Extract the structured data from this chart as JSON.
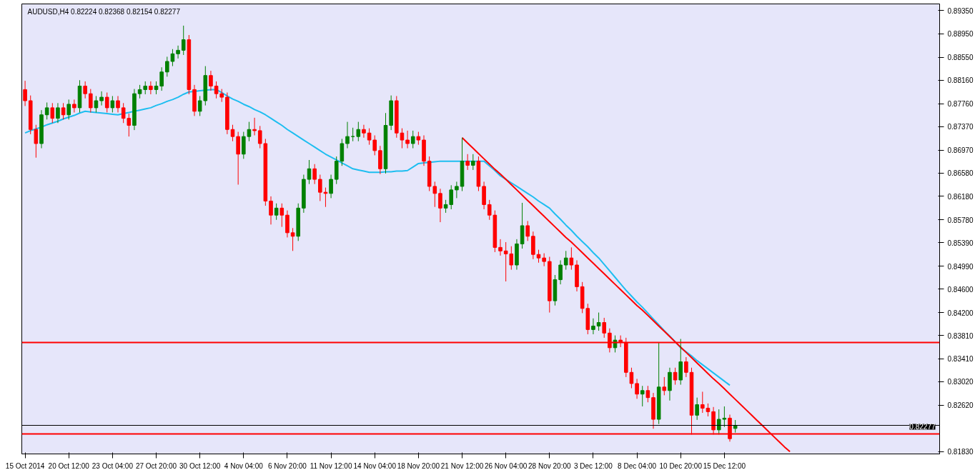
{
  "chart_data": {
    "type": "candlestick",
    "title": "AUDUSD,H4  0.82224 0.82368 0.82154 0.82277",
    "categories": [
      "15 Oct 2014",
      null,
      null,
      null,
      null,
      null,
      null,
      null,
      "20 Oct 12:00",
      null,
      null,
      null,
      null,
      null,
      null,
      null,
      "23 Oct 04:00",
      null,
      null,
      null,
      null,
      null,
      null,
      null,
      "27 Oct 20:00",
      null,
      null,
      null,
      null,
      null,
      null,
      null,
      "30 Oct 12:00",
      null,
      null,
      null,
      null,
      null,
      null,
      null,
      "4 Nov 04:00",
      null,
      null,
      null,
      null,
      null,
      null,
      null,
      "6 Nov 20:00",
      null,
      null,
      null,
      null,
      null,
      null,
      null,
      "11 Nov 12:00",
      null,
      null,
      null,
      null,
      null,
      null,
      null,
      "14 Nov 04:00",
      null,
      null,
      null,
      null,
      null,
      null,
      null,
      "18 Nov 20:00",
      null,
      null,
      null,
      null,
      null,
      null,
      null,
      "21 Nov 12:00",
      null,
      null,
      null,
      null,
      null,
      null,
      null,
      "26 Nov 04:00",
      null,
      null,
      null,
      null,
      null,
      null,
      null,
      "28 Nov 20:00",
      null,
      null,
      null,
      null,
      null,
      null,
      null,
      "3 Dec 12:00",
      null,
      null,
      null,
      null,
      null,
      null,
      null,
      "8 Dec 04:00",
      null,
      null,
      null,
      null,
      null,
      null,
      null,
      "10 Dec 20:00",
      null,
      null,
      null,
      null,
      null,
      null,
      null,
      "15 Dec 12:00",
      null,
      null,
      null,
      null,
      null,
      null,
      null,
      null,
      null,
      null,
      null,
      null,
      null,
      null,
      null,
      null,
      null,
      null,
      null,
      null,
      null,
      null,
      null,
      null,
      null,
      null,
      null,
      null,
      null,
      null,
      null,
      null,
      null,
      null,
      null,
      null,
      null,
      null,
      null
    ],
    "ohlc": [
      [
        0.88,
        0.8815,
        0.8772,
        0.8781
      ],
      [
        0.8781,
        0.879,
        0.8724,
        0.8732
      ],
      [
        0.8732,
        0.874,
        0.8684,
        0.8708
      ],
      [
        0.8708,
        0.8765,
        0.87,
        0.8757
      ],
      [
        0.8757,
        0.8778,
        0.8749,
        0.8769
      ],
      [
        0.8769,
        0.8777,
        0.8743,
        0.8751
      ],
      [
        0.8751,
        0.8777,
        0.8743,
        0.8769
      ],
      [
        0.8769,
        0.8777,
        0.8749,
        0.8757
      ],
      [
        0.8757,
        0.8783,
        0.8749,
        0.8775
      ],
      [
        0.8775,
        0.8783,
        0.8761,
        0.8769
      ],
      [
        0.8769,
        0.8816,
        0.8761,
        0.8806
      ],
      [
        0.8806,
        0.8814,
        0.8785,
        0.8793
      ],
      [
        0.8793,
        0.8801,
        0.8761,
        0.8769
      ],
      [
        0.8769,
        0.8789,
        0.8761,
        0.8781
      ],
      [
        0.8781,
        0.8797,
        0.8773,
        0.8787
      ],
      [
        0.8787,
        0.8795,
        0.8761,
        0.8769
      ],
      [
        0.8769,
        0.8789,
        0.8761,
        0.8781
      ],
      [
        0.8781,
        0.8789,
        0.8761,
        0.8769
      ],
      [
        0.8769,
        0.8777,
        0.8743,
        0.8751
      ],
      [
        0.8751,
        0.8759,
        0.872,
        0.8739
      ],
      [
        0.8739,
        0.8801,
        0.8731,
        0.8793
      ],
      [
        0.8793,
        0.8808,
        0.8785,
        0.88
      ],
      [
        0.88,
        0.8814,
        0.8792,
        0.8806
      ],
      [
        0.8806,
        0.8814,
        0.8792,
        0.88
      ],
      [
        0.88,
        0.8814,
        0.8792,
        0.8806
      ],
      [
        0.8806,
        0.8838,
        0.8798,
        0.883
      ],
      [
        0.883,
        0.8856,
        0.8822,
        0.8848
      ],
      [
        0.8848,
        0.8869,
        0.884,
        0.8861
      ],
      [
        0.8861,
        0.8875,
        0.8853,
        0.8867
      ],
      [
        0.8867,
        0.8909,
        0.8859,
        0.8885
      ],
      [
        0.8885,
        0.8893,
        0.8792,
        0.88
      ],
      [
        0.88,
        0.8808,
        0.8755,
        0.8763
      ],
      [
        0.8763,
        0.8789,
        0.8755,
        0.8781
      ],
      [
        0.8781,
        0.884,
        0.8773,
        0.8824
      ],
      [
        0.8824,
        0.8832,
        0.8798,
        0.8806
      ],
      [
        0.8806,
        0.8814,
        0.8785,
        0.8793
      ],
      [
        0.8793,
        0.8801,
        0.8779,
        0.8787
      ],
      [
        0.8787,
        0.8795,
        0.8724,
        0.8732
      ],
      [
        0.8732,
        0.874,
        0.8712,
        0.872
      ],
      [
        0.872,
        0.8728,
        0.8638,
        0.869
      ],
      [
        0.869,
        0.8728,
        0.8682,
        0.872
      ],
      [
        0.872,
        0.8745,
        0.8712,
        0.8732
      ],
      [
        0.8732,
        0.8752,
        0.8722,
        0.873
      ],
      [
        0.873,
        0.8738,
        0.87,
        0.8708
      ],
      [
        0.8708,
        0.8716,
        0.8602,
        0.861
      ],
      [
        0.861,
        0.8618,
        0.857,
        0.8586
      ],
      [
        0.8586,
        0.8606,
        0.8578,
        0.8598
      ],
      [
        0.8598,
        0.8606,
        0.8566,
        0.8586
      ],
      [
        0.8586,
        0.8594,
        0.8548,
        0.8556
      ],
      [
        0.8556,
        0.8564,
        0.8525,
        0.855
      ],
      [
        0.855,
        0.8606,
        0.8542,
        0.8598
      ],
      [
        0.8598,
        0.8655,
        0.859,
        0.8647
      ],
      [
        0.8647,
        0.868,
        0.8639,
        0.8665
      ],
      [
        0.8665,
        0.8673,
        0.8639,
        0.8647
      ],
      [
        0.8647,
        0.8655,
        0.861,
        0.8625
      ],
      [
        0.8625,
        0.8633,
        0.86,
        0.8623
      ],
      [
        0.8623,
        0.8655,
        0.8615,
        0.8647
      ],
      [
        0.8647,
        0.8686,
        0.8639,
        0.8678
      ],
      [
        0.8678,
        0.8716,
        0.867,
        0.8708
      ],
      [
        0.8708,
        0.8745,
        0.87,
        0.872
      ],
      [
        0.872,
        0.8735,
        0.8712,
        0.872
      ],
      [
        0.872,
        0.8745,
        0.8712,
        0.8732
      ],
      [
        0.8732,
        0.874,
        0.8718,
        0.8726
      ],
      [
        0.8726,
        0.8734,
        0.8706,
        0.8714
      ],
      [
        0.8714,
        0.8722,
        0.8688,
        0.8696
      ],
      [
        0.8696,
        0.8704,
        0.8656,
        0.8665
      ],
      [
        0.8665,
        0.876,
        0.8657,
        0.8739
      ],
      [
        0.8739,
        0.879,
        0.8731,
        0.8781
      ],
      [
        0.8781,
        0.8789,
        0.8718,
        0.8726
      ],
      [
        0.8726,
        0.8734,
        0.87,
        0.8714
      ],
      [
        0.8714,
        0.873,
        0.87,
        0.8708
      ],
      [
        0.8708,
        0.873,
        0.87,
        0.872
      ],
      [
        0.872,
        0.8728,
        0.8706,
        0.8714
      ],
      [
        0.8714,
        0.8722,
        0.867,
        0.8678
      ],
      [
        0.8678,
        0.8686,
        0.8627,
        0.8635
      ],
      [
        0.8635,
        0.8643,
        0.86,
        0.8623
      ],
      [
        0.8623,
        0.8631,
        0.8574,
        0.8598
      ],
      [
        0.8598,
        0.8612,
        0.859,
        0.8604
      ],
      [
        0.8604,
        0.8637,
        0.8596,
        0.8629
      ],
      [
        0.8629,
        0.8643,
        0.8615,
        0.8635
      ],
      [
        0.8635,
        0.8718,
        0.8627,
        0.8678
      ],
      [
        0.8678,
        0.869,
        0.8663,
        0.8671
      ],
      [
        0.8671,
        0.869,
        0.8663,
        0.8678
      ],
      [
        0.8678,
        0.8686,
        0.8627,
        0.8635
      ],
      [
        0.8635,
        0.8643,
        0.8596,
        0.8604
      ],
      [
        0.8604,
        0.8612,
        0.8578,
        0.8586
      ],
      [
        0.8586,
        0.8594,
        0.8523,
        0.8531
      ],
      [
        0.8531,
        0.8545,
        0.8517,
        0.8525
      ],
      [
        0.8525,
        0.854,
        0.8473,
        0.852
      ],
      [
        0.852,
        0.8533,
        0.8493,
        0.8501
      ],
      [
        0.8501,
        0.8545,
        0.8493,
        0.8537
      ],
      [
        0.8537,
        0.8607,
        0.8529,
        0.8568
      ],
      [
        0.8568,
        0.8576,
        0.8542,
        0.855
      ],
      [
        0.855,
        0.8558,
        0.8511,
        0.8519
      ],
      [
        0.8519,
        0.8527,
        0.8505,
        0.8513
      ],
      [
        0.8513,
        0.8521,
        0.8499,
        0.8507
      ],
      [
        0.8507,
        0.8515,
        0.842,
        0.844
      ],
      [
        0.844,
        0.8484,
        0.8432,
        0.8476
      ],
      [
        0.8476,
        0.8509,
        0.8468,
        0.8501
      ],
      [
        0.8501,
        0.8525,
        0.8493,
        0.8513
      ],
      [
        0.8513,
        0.8531,
        0.8493,
        0.8501
      ],
      [
        0.8501,
        0.8509,
        0.8456,
        0.8464
      ],
      [
        0.8464,
        0.8472,
        0.8419,
        0.8427
      ],
      [
        0.8427,
        0.8435,
        0.8383,
        0.8391
      ],
      [
        0.8391,
        0.841,
        0.8383,
        0.8397
      ],
      [
        0.8397,
        0.842,
        0.8389,
        0.8403
      ],
      [
        0.8403,
        0.8411,
        0.8377,
        0.8385
      ],
      [
        0.8385,
        0.8393,
        0.8352,
        0.836
      ],
      [
        0.836,
        0.8381,
        0.8352,
        0.8373
      ],
      [
        0.8373,
        0.8381,
        0.8361,
        0.8369
      ],
      [
        0.8369,
        0.8377,
        0.831,
        0.8318
      ],
      [
        0.8318,
        0.8326,
        0.8291,
        0.8299
      ],
      [
        0.8299,
        0.8307,
        0.8273,
        0.8281
      ],
      [
        0.8281,
        0.8295,
        0.826,
        0.8287
      ],
      [
        0.8287,
        0.8295,
        0.8267,
        0.8275
      ],
      [
        0.8275,
        0.8283,
        0.8222,
        0.8238
      ],
      [
        0.8238,
        0.8369,
        0.823,
        0.8293
      ],
      [
        0.8293,
        0.831,
        0.8279,
        0.8287
      ],
      [
        0.8287,
        0.8326,
        0.827,
        0.8318
      ],
      [
        0.8318,
        0.8326,
        0.8297,
        0.8305
      ],
      [
        0.8305,
        0.8375,
        0.8297,
        0.8336
      ],
      [
        0.8336,
        0.8344,
        0.831,
        0.8318
      ],
      [
        0.8318,
        0.8326,
        0.8212,
        0.8245
      ],
      [
        0.8245,
        0.8275,
        0.8237,
        0.8263
      ],
      [
        0.8263,
        0.8285,
        0.8249,
        0.8257
      ],
      [
        0.8257,
        0.8265,
        0.8243,
        0.8251
      ],
      [
        0.8251,
        0.8259,
        0.8212,
        0.822
      ],
      [
        0.822,
        0.8255,
        0.8212,
        0.8238
      ],
      [
        0.8238,
        0.826,
        0.8225,
        0.824
      ],
      [
        0.824,
        0.8246,
        0.82,
        0.8205
      ],
      [
        0.82224,
        0.82368,
        0.82154,
        0.82277
      ],
      null,
      null,
      null,
      null,
      null,
      null,
      null,
      null,
      null,
      null,
      null,
      null,
      null,
      null,
      null,
      null,
      null,
      null,
      null,
      null,
      null,
      null,
      null,
      null,
      null,
      null,
      null,
      null,
      null,
      null,
      null,
      null,
      null,
      null,
      null,
      null,
      null
    ],
    "series": [
      {
        "type": "line",
        "color": "#1ebef0",
        "values": [
          0.8726,
          0.873,
          0.8733,
          0.8736,
          0.874,
          0.8743,
          0.8746,
          0.875,
          0.8753,
          0.8756,
          0.876,
          0.8763,
          0.8762,
          0.8761,
          0.876,
          0.8759,
          0.8758,
          0.8757,
          0.8759,
          0.8761,
          0.8763,
          0.8765,
          0.8767,
          0.8769,
          0.8773,
          0.8776,
          0.878,
          0.8783,
          0.8787,
          0.8792,
          0.8796,
          0.8797,
          0.8798,
          0.8799,
          0.88,
          0.88,
          0.8795,
          0.8789,
          0.8784,
          0.878,
          0.8775,
          0.8771,
          0.8766,
          0.8762,
          0.8757,
          0.8751,
          0.8745,
          0.8739,
          0.8732,
          0.8726,
          0.872,
          0.8714,
          0.8708,
          0.8702,
          0.8696,
          0.869,
          0.8685,
          0.868,
          0.8675,
          0.867,
          0.8665,
          0.8663,
          0.8661,
          0.8659,
          0.8659,
          0.8659,
          0.866,
          0.866,
          0.8661,
          0.8661,
          0.8662,
          0.8668,
          0.8674,
          0.8675,
          0.8676,
          0.8677,
          0.8678,
          0.8678,
          0.8678,
          0.8678,
          0.8678,
          0.8678,
          0.8678,
          0.8678,
          0.8678,
          0.867,
          0.8662,
          0.8653,
          0.8647,
          0.8641,
          0.8635,
          0.8629,
          0.8623,
          0.8617,
          0.861,
          0.8604,
          0.8598,
          0.8588,
          0.8579,
          0.8569,
          0.856,
          0.855,
          0.8541,
          0.8532,
          0.8522,
          0.8513,
          0.8502,
          0.8491,
          0.848,
          0.8469,
          0.8458,
          0.8448,
          0.8438,
          0.8429,
          0.8419,
          0.8409,
          0.8399,
          0.8389,
          0.838,
          0.837,
          0.836,
          0.8353,
          0.8346,
          0.8338,
          0.8331,
          0.8324,
          0.8317,
          0.831,
          0.8303,
          0.8296,
          null,
          null,
          null,
          null,
          null,
          null,
          null,
          null,
          null,
          null,
          null,
          null,
          null,
          null,
          null,
          null,
          null,
          null,
          null,
          null,
          null,
          null,
          null,
          null,
          null,
          null,
          null,
          null,
          null,
          null,
          null,
          null,
          null,
          null,
          null,
          null,
          null,
          null
        ]
      },
      {
        "type": "line",
        "color": "#ff0000",
        "values": [
          null,
          null,
          null,
          null,
          null,
          null,
          null,
          null,
          null,
          null,
          null,
          null,
          null,
          null,
          null,
          null,
          null,
          null,
          null,
          null,
          null,
          null,
          null,
          null,
          null,
          null,
          null,
          null,
          null,
          null,
          null,
          null,
          null,
          null,
          null,
          null,
          null,
          null,
          null,
          null,
          null,
          null,
          null,
          null,
          null,
          null,
          null,
          null,
          null,
          null,
          null,
          null,
          null,
          null,
          null,
          null,
          null,
          null,
          null,
          null,
          null,
          null,
          null,
          null,
          null,
          null,
          null,
          null,
          null,
          null,
          null,
          null,
          null,
          null,
          null,
          null,
          null,
          null,
          null,
          null,
          0.8718,
          0.8709,
          0.87,
          0.8691,
          0.8682,
          0.8673,
          0.8664,
          0.8656,
          0.8647,
          0.8638,
          0.8629,
          0.862,
          0.8611,
          0.8602,
          0.8593,
          0.8584,
          0.8575,
          0.8566,
          0.8557,
          0.8548,
          0.854,
          0.8531,
          0.8522,
          0.8513,
          0.8504,
          0.8495,
          0.8486,
          0.8477,
          0.8468,
          0.8459,
          0.845,
          0.8441,
          0.8432,
          0.8424,
          0.8415,
          0.8406,
          0.8397,
          0.8388,
          0.8379,
          0.837,
          0.8361,
          0.8352,
          0.8343,
          0.8334,
          0.8325,
          0.8316,
          0.8307,
          0.8299,
          0.829,
          0.8281,
          0.8272,
          0.8263,
          0.8254,
          0.8245,
          0.8236,
          0.8227,
          0.8218,
          0.8209,
          0.82,
          0.8191,
          0.8183,
          null,
          null,
          null,
          null,
          null,
          null,
          null,
          null,
          null,
          null,
          null,
          null,
          null,
          null,
          null,
          null,
          null,
          null,
          null,
          null,
          null,
          null,
          null,
          null,
          null,
          null,
          null
        ]
      }
    ],
    "ref_lines": [
      {
        "axis": "y",
        "value": 0.8369,
        "color": "#ff0000"
      },
      {
        "axis": "y",
        "value": 0.8213,
        "color": "#ff0000"
      },
      {
        "axis": "y",
        "value": 0.82277,
        "color": "#000000",
        "label": "0.82277"
      }
    ],
    "ylim": [
      0.8179,
      0.8946
    ],
    "yticks": [
      {
        "value": 0.8935,
        "label": "0.89350"
      },
      {
        "value": 0.8895,
        "label": "0.88950"
      },
      {
        "value": 0.8855,
        "label": "0.88550"
      },
      {
        "value": 0.8816,
        "label": "0.88160"
      },
      {
        "value": 0.8776,
        "label": "0.87760"
      },
      {
        "value": 0.8737,
        "label": "0.87370"
      },
      {
        "value": 0.8697,
        "label": "0.86970"
      },
      {
        "value": 0.8658,
        "label": "0.86580"
      },
      {
        "value": 0.8618,
        "label": "0.86180"
      },
      {
        "value": 0.8578,
        "label": "0.85780"
      },
      {
        "value": 0.8539,
        "label": "0.85390"
      },
      {
        "value": 0.8499,
        "label": "0.84990"
      },
      {
        "value": 0.846,
        "label": "0.84600"
      },
      {
        "value": 0.842,
        "label": "0.84200"
      },
      {
        "value": 0.8381,
        "label": "0.83810"
      },
      {
        "value": 0.8341,
        "label": "0.83410"
      },
      {
        "value": 0.8302,
        "label": "0.83020"
      },
      {
        "value": 0.8262,
        "label": "0.82620"
      },
      {
        "value": 0.8183,
        "label": "0.81830"
      }
    ]
  }
}
